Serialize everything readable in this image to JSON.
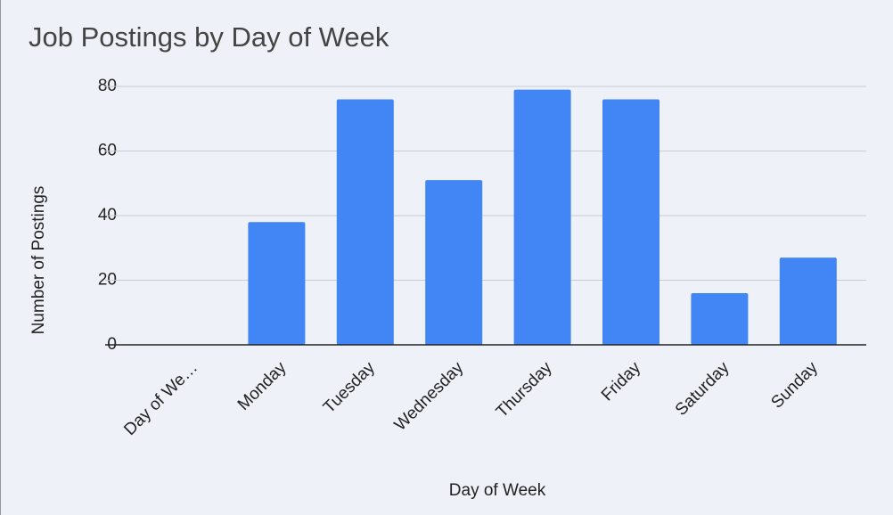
{
  "chart_data": {
    "type": "bar",
    "title": "Job Postings by Day of Week",
    "x_label": "Day of Week",
    "y_label": "Number of Postings",
    "categories": [
      "Day of We…",
      "Monday",
      "Tuesday",
      "Wednesday",
      "Thursday",
      "Friday",
      "Saturday",
      "Sunday"
    ],
    "values": [
      null,
      38,
      76,
      51,
      79,
      76,
      16,
      27
    ],
    "color": "#4285f4",
    "ylim": [
      0,
      80
    ],
    "yticks": [
      0,
      20,
      40,
      60,
      80
    ],
    "grid": true
  }
}
